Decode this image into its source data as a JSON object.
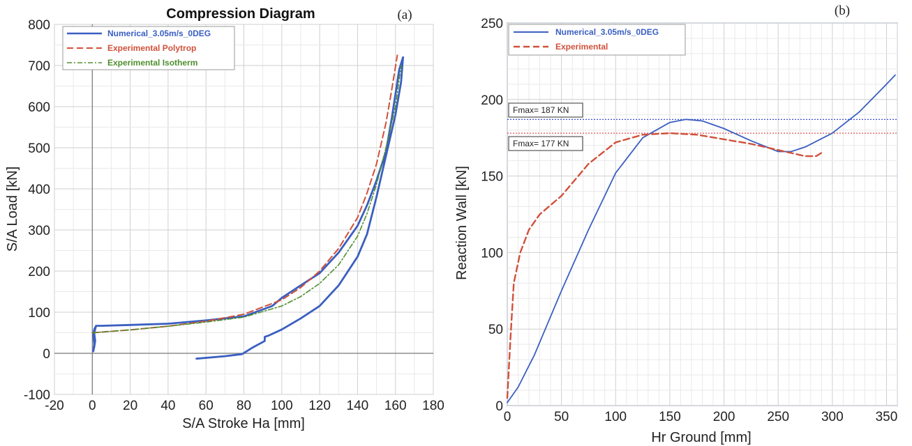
{
  "chart_data": [
    {
      "panel": "(a)",
      "type": "line",
      "title": "Compression Diagram",
      "xlabel": "S/A Stroke Ha [mm]",
      "ylabel": "S/A Load [kN]",
      "xlim": [
        -20,
        180
      ],
      "ylim": [
        -100,
        800
      ],
      "xticks": [
        -20,
        0,
        20,
        40,
        60,
        80,
        100,
        120,
        140,
        160,
        180
      ],
      "yticks": [
        -100,
        0,
        100,
        200,
        300,
        400,
        500,
        600,
        700,
        800
      ],
      "grid": true,
      "legend_position": "top-left",
      "series": [
        {
          "name": "Numerical_3.05m/s_0DEG",
          "color": "#3a5fc1",
          "style": "solid",
          "points": [
            [
              55,
              -13
            ],
            [
              70,
              -7
            ],
            [
              79,
              -2
            ],
            [
              85,
              15
            ],
            [
              91,
              30
            ],
            [
              91,
              40
            ],
            [
              93,
              43
            ],
            [
              100,
              58
            ],
            [
              110,
              85
            ],
            [
              120,
              115
            ],
            [
              130,
              165
            ],
            [
              140,
              235
            ],
            [
              145,
              290
            ],
            [
              150,
              380
            ],
            [
              155,
              480
            ],
            [
              160,
              580
            ],
            [
              163,
              660
            ],
            [
              164,
              720
            ],
            [
              162,
              690
            ],
            [
              158,
              570
            ],
            [
              155,
              490
            ],
            [
              150,
              420
            ],
            [
              145,
              360
            ],
            [
              140,
              310
            ],
            [
              130,
              245
            ],
            [
              120,
              195
            ],
            [
              110,
              165
            ],
            [
              100,
              135
            ],
            [
              95,
              115
            ],
            [
              80,
              90
            ],
            [
              60,
              80
            ],
            [
              40,
              72
            ],
            [
              20,
              69
            ],
            [
              5,
              67
            ],
            [
              2,
              67
            ],
            [
              1,
              58
            ],
            [
              0.5,
              45
            ],
            [
              1,
              22
            ],
            [
              0.5,
              5
            ],
            [
              1,
              15
            ],
            [
              1.5,
              30
            ],
            [
              1,
              50
            ],
            [
              2,
              67
            ]
          ]
        },
        {
          "name": "Experimental Polytrop",
          "color": "#d1503a",
          "style": "dashed",
          "points": [
            [
              0,
              50
            ],
            [
              20,
              57
            ],
            [
              40,
              66
            ],
            [
              60,
              78
            ],
            [
              80,
              95
            ],
            [
              100,
              130
            ],
            [
              110,
              160
            ],
            [
              120,
              200
            ],
            [
              130,
              255
            ],
            [
              140,
              330
            ],
            [
              145,
              390
            ],
            [
              150,
              460
            ],
            [
              155,
              560
            ],
            [
              158,
              640
            ],
            [
              161,
              725
            ]
          ]
        },
        {
          "name": "Experimental Isotherm",
          "color": "#4e8f2e",
          "style": "dashdot",
          "points": [
            [
              0,
              50
            ],
            [
              20,
              57
            ],
            [
              40,
              66
            ],
            [
              60,
              76
            ],
            [
              80,
              88
            ],
            [
              100,
              115
            ],
            [
              110,
              138
            ],
            [
              120,
              170
            ],
            [
              130,
              215
            ],
            [
              140,
              285
            ],
            [
              145,
              340
            ],
            [
              150,
              410
            ],
            [
              155,
              500
            ],
            [
              160,
              600
            ],
            [
              163,
              700
            ]
          ]
        }
      ]
    },
    {
      "panel": "(b)",
      "type": "line",
      "xlabel": "Hr Ground [mm]",
      "ylabel": "Reaction Wall [kN]",
      "xlim": [
        0,
        360
      ],
      "ylim": [
        0,
        250
      ],
      "xticks": [
        0,
        50,
        100,
        150,
        200,
        250,
        300,
        350
      ],
      "yticks": [
        0,
        50,
        100,
        150,
        200,
        250
      ],
      "grid": true,
      "legend_position": "top-left",
      "series": [
        {
          "name": "Numerical_3.05m/s_0DEG",
          "color": "#3a5fc1",
          "style": "solid",
          "points": [
            [
              0,
              2
            ],
            [
              10,
              12
            ],
            [
              25,
              33
            ],
            [
              50,
              75
            ],
            [
              75,
              115
            ],
            [
              100,
              152
            ],
            [
              125,
              175
            ],
            [
              150,
              185
            ],
            [
              165,
              187
            ],
            [
              180,
              186
            ],
            [
              200,
              181
            ],
            [
              225,
              173
            ],
            [
              250,
              166
            ],
            [
              262,
              166
            ],
            [
              275,
              169
            ],
            [
              300,
              178
            ],
            [
              325,
              192
            ],
            [
              350,
              210
            ],
            [
              358,
              216
            ]
          ]
        },
        {
          "name": "Experimental",
          "color": "#d1503a",
          "style": "dashed",
          "points": [
            [
              0,
              5
            ],
            [
              3,
              45
            ],
            [
              6,
              80
            ],
            [
              12,
              100
            ],
            [
              20,
              115
            ],
            [
              30,
              125
            ],
            [
              50,
              137
            ],
            [
              75,
              158
            ],
            [
              100,
              172
            ],
            [
              125,
              177
            ],
            [
              150,
              178
            ],
            [
              175,
              177
            ],
            [
              200,
              174
            ],
            [
              225,
              171
            ],
            [
              250,
              167
            ],
            [
              275,
              163
            ],
            [
              285,
              163
            ],
            [
              292,
              166
            ]
          ]
        }
      ],
      "reference_lines": [
        {
          "label": "Fmax= 187 KN",
          "y": 187,
          "color": "#3b4fd6"
        },
        {
          "label": "Fmax= 177 KN",
          "y": 178,
          "color": "#e05050"
        }
      ]
    }
  ]
}
